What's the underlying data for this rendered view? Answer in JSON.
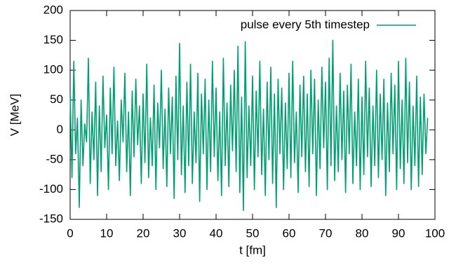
{
  "chart_data": {
    "type": "line",
    "xlabel": "t [fm]",
    "ylabel": "V [MeV]",
    "xlim": [
      0,
      100
    ],
    "xticks": [
      0,
      10,
      20,
      30,
      40,
      50,
      60,
      70,
      80,
      90,
      100
    ],
    "ylim": [
      -150,
      200
    ],
    "yticks": [
      -150,
      -100,
      -50,
      0,
      50,
      100,
      150,
      200
    ],
    "legend": "top right",
    "grid": false,
    "x": [
      0,
      0.5,
      1,
      1.5,
      2,
      2.5,
      3,
      3.5,
      4,
      4.5,
      5,
      5.5,
      6,
      6.5,
      7,
      7.5,
      8,
      8.5,
      9,
      9.5,
      10,
      10.5,
      11,
      11.5,
      12,
      12.5,
      13,
      13.5,
      14,
      14.5,
      15,
      15.5,
      16,
      16.5,
      17,
      17.5,
      18,
      18.5,
      19,
      19.5,
      20,
      20.5,
      21,
      21.5,
      22,
      22.5,
      23,
      23.5,
      24,
      24.5,
      25,
      25.5,
      26,
      26.5,
      27,
      27.5,
      28,
      28.5,
      29,
      29.5,
      30,
      30.5,
      31,
      31.5,
      32,
      32.5,
      33,
      33.5,
      34,
      34.5,
      35,
      35.5,
      36,
      36.5,
      37,
      37.5,
      38,
      38.5,
      39,
      39.5,
      40,
      40.5,
      41,
      41.5,
      42,
      42.5,
      43,
      43.5,
      44,
      44.5,
      45,
      45.5,
      46,
      46.5,
      47,
      47.5,
      48,
      48.5,
      49,
      49.5,
      50,
      50.5,
      51,
      51.5,
      52,
      52.5,
      53,
      53.5,
      54,
      54.5,
      55,
      55.5,
      56,
      56.5,
      57,
      57.5,
      58,
      58.5,
      59,
      59.5,
      60,
      60.5,
      61,
      61.5,
      62,
      62.5,
      63,
      63.5,
      64,
      64.5,
      65,
      65.5,
      66,
      66.5,
      67,
      67.5,
      68,
      68.5,
      69,
      69.5,
      70,
      70.5,
      71,
      71.5,
      72,
      72.5,
      73,
      73.5,
      74,
      74.5,
      75,
      75.5,
      76,
      76.5,
      77,
      77.5,
      78,
      78.5,
      79,
      79.5,
      80,
      80.5,
      81,
      81.5,
      82,
      82.5,
      83,
      83.5,
      84,
      84.5,
      85,
      85.5,
      86,
      86.5,
      87,
      87.5,
      88,
      88.5,
      89,
      89.5,
      90,
      90.5,
      91,
      91.5,
      92,
      92.5,
      93,
      93.5,
      94,
      94.5,
      95,
      95.5,
      96,
      96.5,
      97,
      97.5,
      98
    ],
    "series": [
      {
        "name": "pulse every 5th timestep",
        "color": "#009e73",
        "values": [
          60,
          -80,
          115,
          -40,
          20,
          -130,
          50,
          -60,
          10,
          -20,
          120,
          -90,
          30,
          -50,
          80,
          -110,
          40,
          -70,
          90,
          -30,
          25,
          -100,
          70,
          -40,
          105,
          -60,
          15,
          -85,
          50,
          -20,
          95,
          -70,
          30,
          -110,
          65,
          -45,
          85,
          -25,
          40,
          -90,
          60,
          -55,
          110,
          -80,
          20,
          -60,
          75,
          -100,
          45,
          -30,
          100,
          -65,
          35,
          -95,
          70,
          -40,
          55,
          -115,
          90,
          -50,
          145,
          -75,
          40,
          -105,
          80,
          -60,
          110,
          -90,
          30,
          -55,
          95,
          -120,
          60,
          -40,
          85,
          -100,
          50,
          -70,
          115,
          -45,
          70,
          -85,
          30,
          -110,
          120,
          -60,
          45,
          -95,
          75,
          -35,
          100,
          -70,
          140,
          -105,
          55,
          -135,
          148,
          -80,
          40,
          -60,
          90,
          -100,
          65,
          -45,
          115,
          -75,
          35,
          -110,
          80,
          -50,
          105,
          -90,
          60,
          -130,
          85,
          -40,
          70,
          -100,
          45,
          -65,
          95,
          -80,
          115,
          -55,
          30,
          -105,
          75,
          -45,
          90,
          -70,
          60,
          -95,
          100,
          -40,
          85,
          -110,
          50,
          -65,
          105,
          -30,
          80,
          -100,
          120,
          -60,
          150,
          -85,
          40,
          -70,
          95,
          -50,
          65,
          -105,
          75,
          -40,
          110,
          -90,
          30,
          -60,
          85,
          -100,
          55,
          -75,
          115,
          -45,
          70,
          -95,
          40,
          -60,
          100,
          -80,
          60,
          -50,
          85,
          -110,
          45,
          -70,
          95,
          -40,
          75,
          -100,
          115,
          -65,
          50,
          -90,
          120,
          -55,
          80,
          -100,
          40,
          -60,
          90,
          -95,
          55,
          -75,
          60,
          -40,
          20
        ]
      }
    ]
  }
}
